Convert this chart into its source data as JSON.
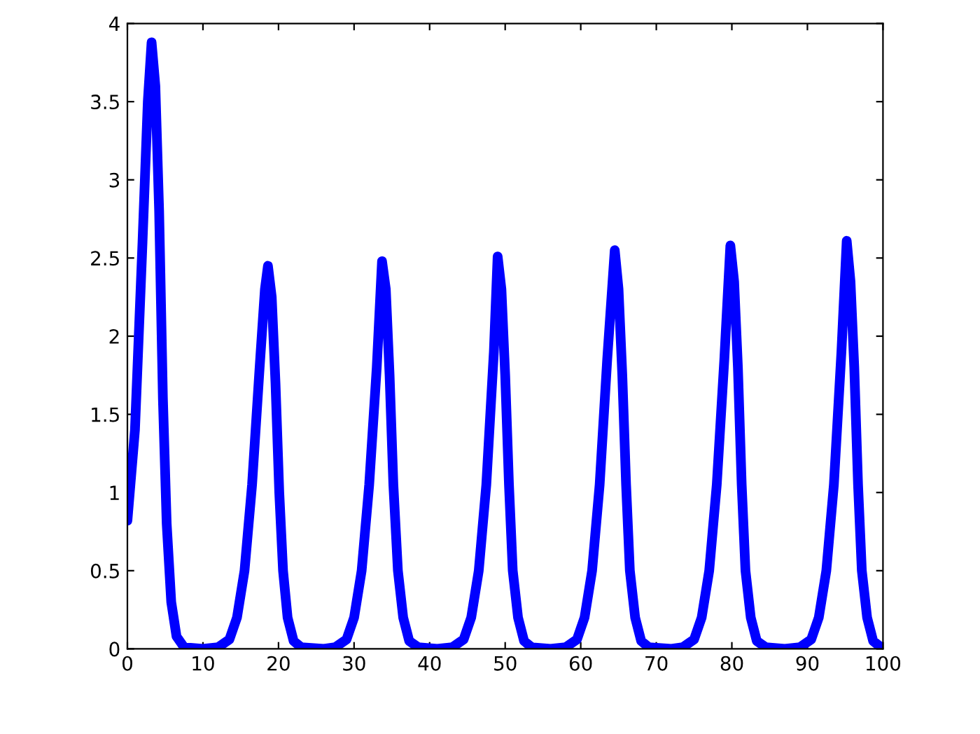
{
  "chart_data": {
    "type": "line",
    "xlim": [
      0,
      100
    ],
    "ylim": [
      0,
      4
    ],
    "xticks": [
      0,
      10,
      20,
      30,
      40,
      50,
      60,
      70,
      80,
      90,
      100
    ],
    "yticks": [
      0,
      0.5,
      1,
      1.5,
      2,
      2.5,
      3,
      3.5,
      4
    ],
    "grid": false,
    "legend": false,
    "line_style": "solid",
    "series": [
      {
        "color": "#0000ff",
        "x": [
          0,
          1,
          2,
          2.7,
          3.2,
          3.7,
          4.2,
          4.7,
          5.2,
          5.8,
          6.5,
          7.5,
          10,
          12,
          13.5,
          14.5,
          15.5,
          16.5,
          17.5,
          18.2,
          18.6,
          19.1,
          19.6,
          20.1,
          20.6,
          21.2,
          22,
          23,
          26,
          27.5,
          29,
          30,
          31,
          32,
          33,
          33.7,
          34.2,
          34.7,
          35.2,
          35.8,
          36.5,
          37.3,
          38.5,
          41,
          43,
          44.5,
          45.5,
          46.5,
          47.5,
          48.5,
          49,
          49.5,
          50,
          50.5,
          51,
          51.7,
          52.5,
          53.5,
          56,
          58,
          59.5,
          60.5,
          61.5,
          62.5,
          63.5,
          64.5,
          65,
          65.5,
          66,
          66.5,
          67.2,
          68,
          69,
          72,
          73.5,
          75,
          76,
          77,
          78,
          79,
          79.8,
          80.3,
          80.8,
          81.3,
          81.8,
          82.5,
          83.3,
          84.5,
          87,
          89,
          90.5,
          91.5,
          92.5,
          93.5,
          94.5,
          95.2,
          95.7,
          96.2,
          96.7,
          97.2,
          97.9,
          98.7,
          100
        ],
        "values": [
          0.82,
          1.4,
          2.6,
          3.5,
          3.88,
          3.6,
          2.8,
          1.6,
          0.8,
          0.3,
          0.08,
          0.01,
          0.0,
          0.01,
          0.06,
          0.2,
          0.5,
          1.05,
          1.8,
          2.3,
          2.45,
          2.25,
          1.7,
          1.0,
          0.5,
          0.2,
          0.05,
          0.01,
          0.0,
          0.01,
          0.06,
          0.2,
          0.5,
          1.05,
          1.8,
          2.48,
          2.3,
          1.75,
          1.05,
          0.5,
          0.2,
          0.05,
          0.01,
          0.0,
          0.01,
          0.06,
          0.2,
          0.5,
          1.05,
          1.9,
          2.51,
          2.3,
          1.75,
          1.05,
          0.5,
          0.2,
          0.05,
          0.01,
          0.0,
          0.01,
          0.06,
          0.2,
          0.5,
          1.05,
          1.85,
          2.55,
          2.3,
          1.75,
          1.05,
          0.5,
          0.2,
          0.05,
          0.01,
          0.0,
          0.01,
          0.06,
          0.2,
          0.5,
          1.05,
          1.85,
          2.58,
          2.35,
          1.8,
          1.05,
          0.5,
          0.2,
          0.05,
          0.01,
          0.0,
          0.01,
          0.06,
          0.2,
          0.5,
          1.05,
          1.9,
          2.61,
          2.35,
          1.8,
          1.05,
          0.5,
          0.2,
          0.05,
          0.0
        ]
      }
    ]
  }
}
